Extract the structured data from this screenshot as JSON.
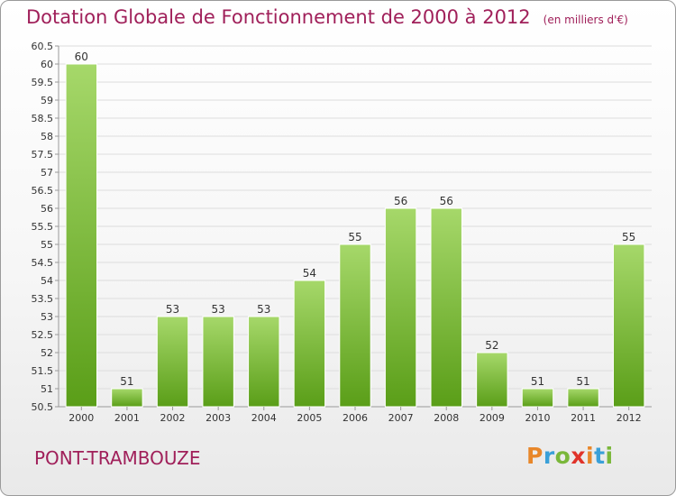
{
  "title": "Dotation Globale de Fonctionnement de 2000 à 2012",
  "unit": "(en milliers d'€)",
  "commune": "PONT-TRAMBOUZE",
  "logo": {
    "letters": [
      "P",
      "r",
      "o",
      "x",
      "i",
      "t",
      "i"
    ],
    "colors": [
      "#e8872a",
      "#3aa0d8",
      "#7ab73a",
      "#e0332a",
      "#e8872a",
      "#3aa0d8",
      "#7ab73a"
    ]
  },
  "colors": {
    "accent": "#a0205a",
    "bar_light": "#a6d86a",
    "bar_dark": "#5a9e18",
    "grid": "#dddddd"
  },
  "chart_data": {
    "type": "bar",
    "categories": [
      "2000",
      "2001",
      "2002",
      "2003",
      "2004",
      "2005",
      "2006",
      "2007",
      "2008",
      "2009",
      "2010",
      "2011",
      "2012"
    ],
    "values": [
      60,
      51,
      53,
      53,
      53,
      54,
      55,
      56,
      56,
      52,
      51,
      51,
      55
    ],
    "data_labels": [
      "60",
      "51",
      "53",
      "53",
      "53",
      "54",
      "55",
      "56",
      "56",
      "52",
      "51",
      "51",
      "55"
    ],
    "yticks": [
      "50.5",
      "51",
      "51.5",
      "52",
      "52.5",
      "53",
      "53.5",
      "54",
      "54.5",
      "55",
      "55.5",
      "56",
      "56.5",
      "57",
      "57.5",
      "58",
      "58.5",
      "59",
      "59.5",
      "60",
      "60.5"
    ],
    "ylim": [
      50.5,
      60.5
    ],
    "grid": true
  }
}
